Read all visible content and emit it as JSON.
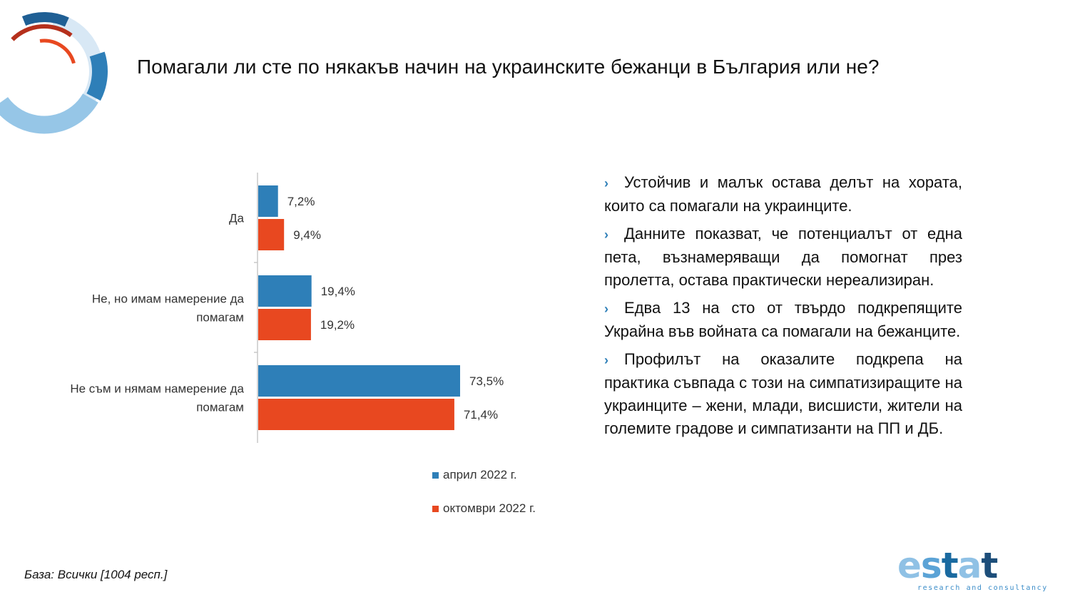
{
  "title": "Помагали ли сте по някакъв начин на украинските бежанци в България или не?",
  "colors": {
    "april": "#2e7fb8",
    "october": "#e84820"
  },
  "chart_data": {
    "type": "bar",
    "orientation": "horizontal",
    "categories": [
      "Да",
      "Не, но имам намерение да помагам",
      "Не съм и нямам намерение да помагам"
    ],
    "category_lines": [
      [
        "Да"
      ],
      [
        "Не, но имам намерение да",
        "помагам"
      ],
      [
        "Не съм и нямам намерение да",
        "помагам"
      ]
    ],
    "series": [
      {
        "name": "април 2022 г.",
        "values": [
          7.2,
          19.4,
          73.5
        ],
        "labels": [
          "7,2%",
          "19,4%",
          "73,5%"
        ],
        "color": "#2e7fb8"
      },
      {
        "name": "октомври 2022 г.",
        "values": [
          9.4,
          19.2,
          71.4
        ],
        "labels": [
          "9,4%",
          "19,2%",
          "71,4%"
        ],
        "color": "#e84820"
      }
    ],
    "xlim": [
      0,
      100
    ],
    "grid": false,
    "legend_position": "bottom"
  },
  "legend": {
    "items": [
      "април 2022 г.",
      "октомври 2022 г."
    ]
  },
  "bullets": [
    "Устойчив и малък остава делът на хората, които са помагали на украинците.",
    "Данните показват, че потенциалът от една пета, възнамеряващи да помогнат през пролетта, остава практически нереализиран.",
    "Едва 13 на сто от твърдо подкрепящите Украйна във войната са помагали на бежанците.",
    "Профилът на оказалите подкрепа на практика съвпада с този на симпатизиращите на украинците – жени, млади, висшисти, жители на големите градове и симпатизанти на ПП и ДБ."
  ],
  "base_note": "База: Всички [1004 респ.]",
  "brand": {
    "letters": [
      "e",
      "s",
      "t",
      "a",
      "t"
    ],
    "tagline": "research and consultancy",
    "colors": [
      "#8fc1e5",
      "#5ba3d6",
      "#1a6aa0",
      "#8fc1e5",
      "#1d4e7a"
    ]
  }
}
